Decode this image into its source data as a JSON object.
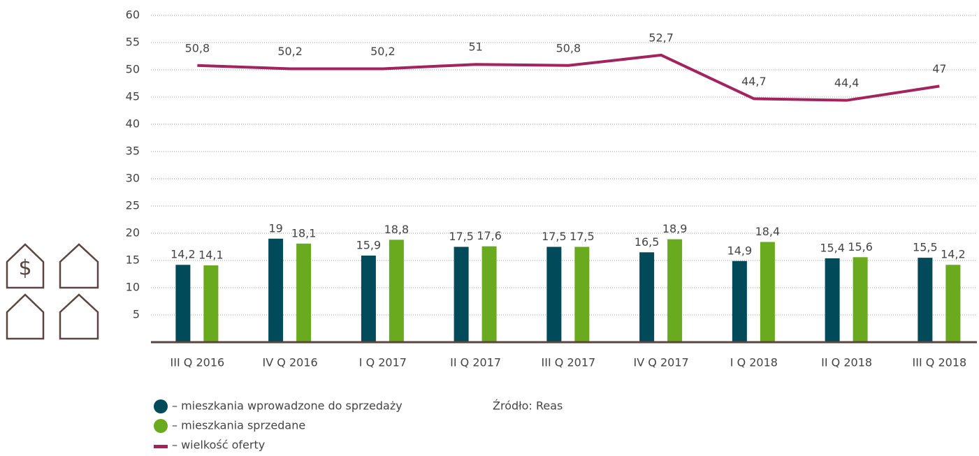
{
  "chart_data": {
    "type": "bar-line",
    "categories": [
      "III Q 2016",
      "IV Q 2016",
      "I Q 2017",
      "II Q 2017",
      "III Q 2017",
      "IV Q 2017",
      "I Q 2018",
      "II Q 2018",
      "III Q 2018"
    ],
    "series": [
      {
        "name": "– mieszkania wprowadzone do sprzedaży",
        "type": "bar",
        "color": "#004a5a",
        "values": [
          14.2,
          19,
          15.9,
          17.5,
          17.5,
          16.5,
          14.9,
          15.4,
          15.5
        ],
        "value_labels": [
          "14,2",
          "19",
          "15,9",
          "17,5",
          "17,5",
          "16,5",
          "14,9",
          "15,4",
          "15,5"
        ]
      },
      {
        "name": "– mieszkania sprzedane",
        "type": "bar",
        "color": "#6aaa1e",
        "values": [
          14.1,
          18.1,
          18.8,
          17.6,
          17.5,
          18.9,
          18.4,
          15.6,
          14.2
        ],
        "value_labels": [
          "14,1",
          "18,1",
          "18,8",
          "17,6",
          "17,5",
          "18,9",
          "18,4",
          "15,6",
          "14,2"
        ]
      },
      {
        "name": "– wielkość oferty",
        "type": "line",
        "color": "#a3235e",
        "values": [
          50.8,
          50.2,
          50.2,
          51,
          50.8,
          52.7,
          44.7,
          44.4,
          47
        ],
        "value_labels": [
          "50,8",
          "50,2",
          "50,2",
          "51",
          "50,8",
          "52,7",
          "44,7",
          "44,4",
          "47"
        ]
      }
    ],
    "ylim": [
      0,
      60
    ],
    "yticks": [
      5,
      10,
      15,
      20,
      25,
      30,
      35,
      40,
      45,
      50,
      55,
      60
    ],
    "grid": true,
    "source": "Źródło: Reas",
    "icon_text": "$"
  }
}
